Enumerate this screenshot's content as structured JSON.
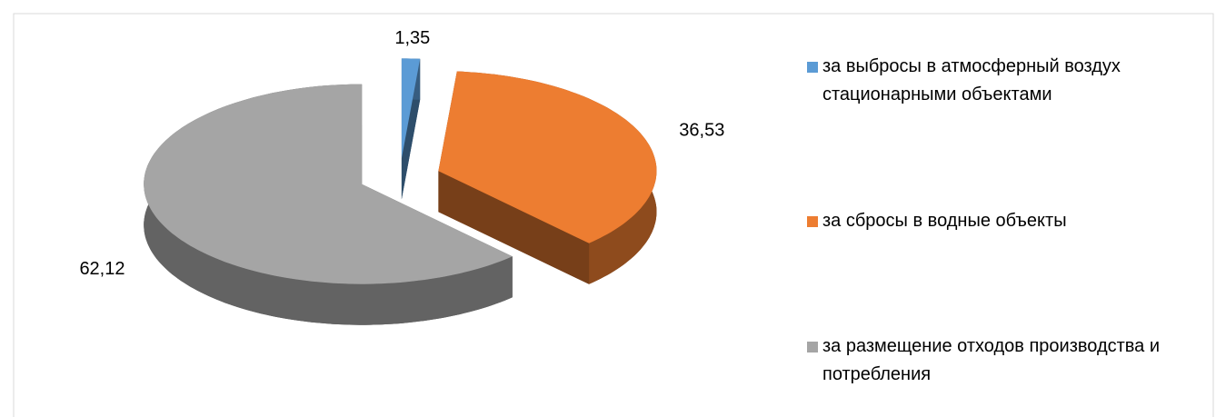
{
  "chart_data": {
    "type": "pie",
    "categories": [
      "за выбросы в атмосферный воздух стационарными объектами",
      "за сбросы в водные объекты",
      "за размещение отходов производства и потребления"
    ],
    "values": [
      1.35,
      36.53,
      62.12
    ],
    "value_labels": [
      "1,35",
      "36,53",
      "62,12"
    ],
    "colors": [
      "#5b9bd5",
      "#ed7d31",
      "#a5a5a5"
    ],
    "legend": "right"
  }
}
